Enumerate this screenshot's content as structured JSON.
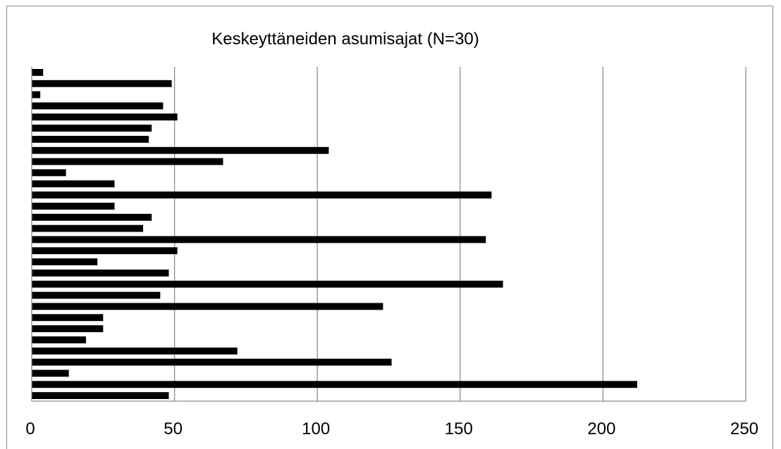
{
  "chart_data": {
    "type": "bar",
    "orientation": "horizontal",
    "title": "Keskeyttäneiden asumisajat (N=30)",
    "xlabel": "",
    "ylabel": "",
    "xlim": [
      0,
      250
    ],
    "x_ticks": [
      0,
      50,
      100,
      150,
      200,
      250
    ],
    "gridlines": "vertical",
    "legend": "none",
    "bar_color": "#000000",
    "grid_color": "#8c8c8c",
    "values": [
      48,
      212,
      13,
      126,
      72,
      19,
      25,
      25,
      123,
      45,
      165,
      48,
      23,
      51,
      159,
      39,
      42,
      29,
      161,
      29,
      12,
      67,
      104,
      41,
      42,
      51,
      46,
      3,
      49,
      4
    ]
  }
}
